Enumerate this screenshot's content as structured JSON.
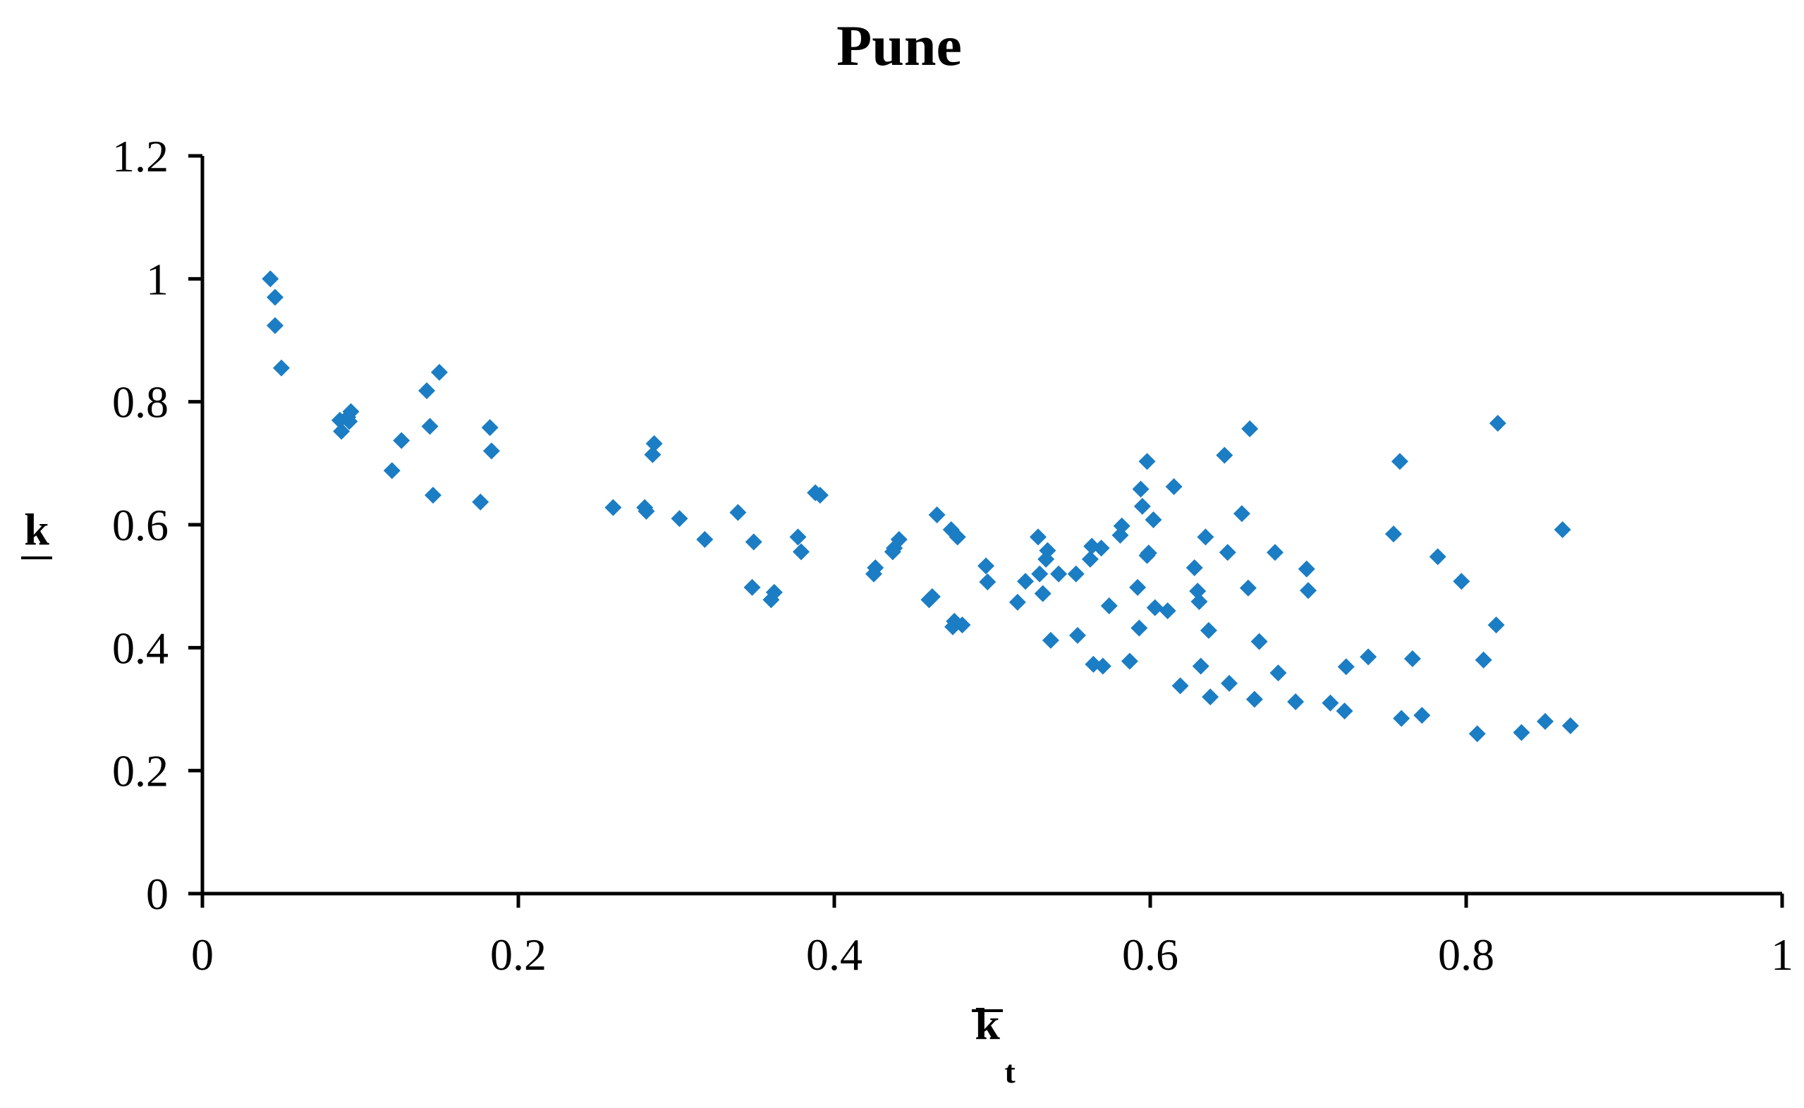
{
  "chart_data": {
    "type": "scatter",
    "title": "Pune",
    "xlabel": {
      "main": "k",
      "sub": "t"
    },
    "ylabel": "k",
    "xlim": [
      0,
      1
    ],
    "ylim": [
      0,
      1.2
    ],
    "x_ticks": [
      "0",
      "0.2",
      "0.4",
      "0.6",
      "0.8",
      "1"
    ],
    "y_ticks": [
      "0",
      "0.2",
      "0.4",
      "0.6",
      "0.8",
      "1",
      "1.2"
    ],
    "grid": false,
    "legend": "none",
    "marker": "diamond",
    "color": "#1b7dc4",
    "series": [
      {
        "points": [
          [
            0.043,
            1.0
          ],
          [
            0.046,
            0.97
          ],
          [
            0.046,
            0.924
          ],
          [
            0.05,
            0.855
          ],
          [
            0.087,
            0.77
          ],
          [
            0.088,
            0.752
          ],
          [
            0.092,
            0.775
          ],
          [
            0.094,
            0.784
          ],
          [
            0.093,
            0.768
          ],
          [
            0.12,
            0.688
          ],
          [
            0.126,
            0.737
          ],
          [
            0.142,
            0.818
          ],
          [
            0.144,
            0.76
          ],
          [
            0.146,
            0.648
          ],
          [
            0.15,
            0.848
          ],
          [
            0.176,
            0.637
          ],
          [
            0.182,
            0.758
          ],
          [
            0.183,
            0.72
          ],
          [
            0.26,
            0.628
          ],
          [
            0.28,
            0.628
          ],
          [
            0.281,
            0.622
          ],
          [
            0.285,
            0.714
          ],
          [
            0.286,
            0.732
          ],
          [
            0.302,
            0.61
          ],
          [
            0.318,
            0.576
          ],
          [
            0.339,
            0.62
          ],
          [
            0.349,
            0.572
          ],
          [
            0.348,
            0.498
          ],
          [
            0.36,
            0.478
          ],
          [
            0.362,
            0.49
          ],
          [
            0.377,
            0.58
          ],
          [
            0.379,
            0.556
          ],
          [
            0.388,
            0.652
          ],
          [
            0.391,
            0.648
          ],
          [
            0.425,
            0.52
          ],
          [
            0.426,
            0.53
          ],
          [
            0.437,
            0.556
          ],
          [
            0.438,
            0.562
          ],
          [
            0.441,
            0.576
          ],
          [
            0.46,
            0.478
          ],
          [
            0.462,
            0.483
          ],
          [
            0.465,
            0.616
          ],
          [
            0.474,
            0.592
          ],
          [
            0.478,
            0.58
          ],
          [
            0.475,
            0.434
          ],
          [
            0.476,
            0.443
          ],
          [
            0.481,
            0.437
          ],
          [
            0.496,
            0.533
          ],
          [
            0.497,
            0.507
          ],
          [
            0.516,
            0.474
          ],
          [
            0.521,
            0.508
          ],
          [
            0.529,
            0.58
          ],
          [
            0.53,
            0.52
          ],
          [
            0.532,
            0.488
          ],
          [
            0.534,
            0.544
          ],
          [
            0.535,
            0.558
          ],
          [
            0.537,
            0.412
          ],
          [
            0.542,
            0.52
          ],
          [
            0.553,
            0.52
          ],
          [
            0.554,
            0.42
          ],
          [
            0.562,
            0.544
          ],
          [
            0.563,
            0.565
          ],
          [
            0.564,
            0.373
          ],
          [
            0.569,
            0.562
          ],
          [
            0.57,
            0.37
          ],
          [
            0.574,
            0.468
          ],
          [
            0.581,
            0.583
          ],
          [
            0.582,
            0.598
          ],
          [
            0.587,
            0.378
          ],
          [
            0.592,
            0.498
          ],
          [
            0.593,
            0.432
          ],
          [
            0.594,
            0.658
          ],
          [
            0.595,
            0.63
          ],
          [
            0.598,
            0.703
          ],
          [
            0.598,
            0.55
          ],
          [
            0.599,
            0.554
          ],
          [
            0.602,
            0.608
          ],
          [
            0.603,
            0.465
          ],
          [
            0.611,
            0.46
          ],
          [
            0.615,
            0.662
          ],
          [
            0.619,
            0.338
          ],
          [
            0.628,
            0.53
          ],
          [
            0.63,
            0.492
          ],
          [
            0.631,
            0.475
          ],
          [
            0.632,
            0.37
          ],
          [
            0.635,
            0.58
          ],
          [
            0.637,
            0.428
          ],
          [
            0.638,
            0.32
          ],
          [
            0.647,
            0.713
          ],
          [
            0.649,
            0.555
          ],
          [
            0.65,
            0.342
          ],
          [
            0.658,
            0.618
          ],
          [
            0.662,
            0.497
          ],
          [
            0.663,
            0.756
          ],
          [
            0.666,
            0.316
          ],
          [
            0.669,
            0.41
          ],
          [
            0.679,
            0.555
          ],
          [
            0.681,
            0.359
          ],
          [
            0.692,
            0.312
          ],
          [
            0.699,
            0.528
          ],
          [
            0.7,
            0.493
          ],
          [
            0.714,
            0.31
          ],
          [
            0.723,
            0.297
          ],
          [
            0.724,
            0.369
          ],
          [
            0.738,
            0.385
          ],
          [
            0.754,
            0.585
          ],
          [
            0.758,
            0.703
          ],
          [
            0.759,
            0.285
          ],
          [
            0.766,
            0.382
          ],
          [
            0.772,
            0.29
          ],
          [
            0.782,
            0.548
          ],
          [
            0.797,
            0.508
          ],
          [
            0.807,
            0.26
          ],
          [
            0.811,
            0.38
          ],
          [
            0.819,
            0.437
          ],
          [
            0.82,
            0.765
          ],
          [
            0.835,
            0.262
          ],
          [
            0.85,
            0.28
          ],
          [
            0.861,
            0.592
          ],
          [
            0.866,
            0.273
          ]
        ]
      }
    ]
  }
}
